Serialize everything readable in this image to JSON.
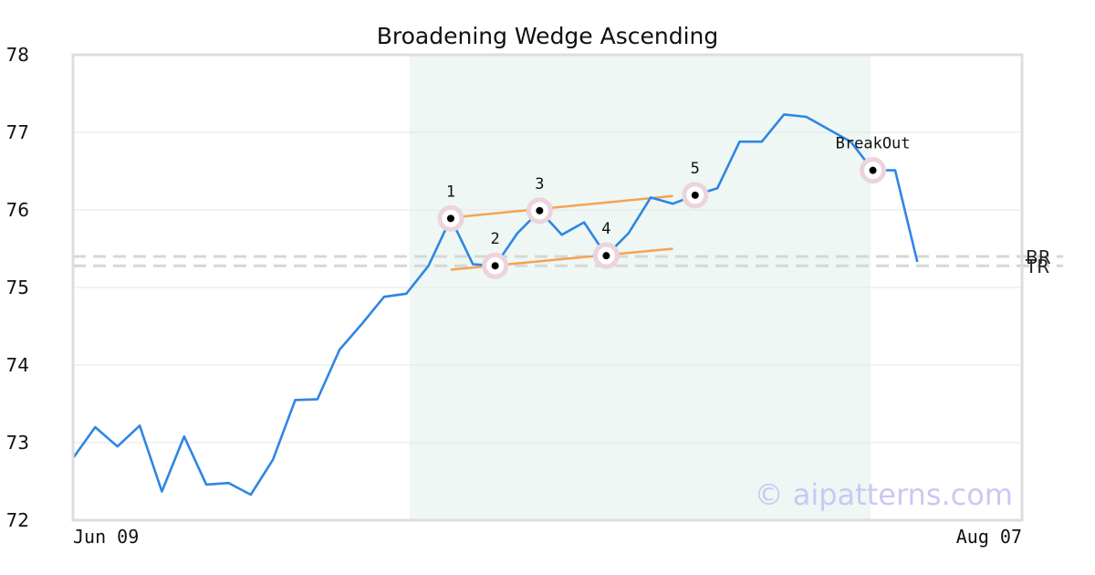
{
  "chart_data": {
    "type": "line",
    "title": "Broadening Wedge Ascending",
    "xlabel": "",
    "ylabel": "",
    "ylim": [
      72,
      78
    ],
    "y_ticks": [
      "72",
      "73",
      "74",
      "75",
      "76",
      "77",
      "78"
    ],
    "x_tick_labels": [
      "Jun 09",
      "Aug 07"
    ],
    "grid": "horizontal",
    "series": [
      {
        "color": "#2e86e4",
        "values": [
          72.8,
          73.2,
          72.95,
          73.22,
          72.37,
          73.08,
          72.46,
          72.48,
          72.33,
          72.78,
          73.55,
          73.56,
          74.2,
          74.53,
          74.88,
          74.92,
          75.28,
          75.89,
          75.3,
          75.28,
          75.7,
          75.99,
          75.68,
          75.84,
          75.41,
          75.7,
          76.16,
          76.08,
          76.19,
          76.28,
          76.88,
          76.88,
          77.23,
          77.2,
          77.04,
          76.88,
          76.51,
          76.51,
          75.33
        ]
      }
    ],
    "highlight_region": {
      "start_index": 15,
      "end_index": 36,
      "color": "#eef7f3"
    },
    "trendlines": [
      {
        "color": "#f4a352",
        "start": [
          17,
          75.9
        ],
        "end": [
          27,
          76.18
        ]
      },
      {
        "color": "#f4a352",
        "start": [
          17,
          75.23
        ],
        "end": [
          27,
          75.5
        ]
      }
    ],
    "markers": [
      {
        "label": "1",
        "index": 17,
        "value": 75.89,
        "position": "above"
      },
      {
        "label": "2",
        "index": 19,
        "value": 75.28,
        "position": "above"
      },
      {
        "label": "3",
        "index": 21,
        "value": 75.99,
        "position": "above"
      },
      {
        "label": "4",
        "index": 24,
        "value": 75.41,
        "position": "above"
      },
      {
        "label": "5",
        "index": 28,
        "value": 76.19,
        "position": "above"
      },
      {
        "label": "BreakOut",
        "index": 36,
        "value": 76.51,
        "position": "above"
      }
    ],
    "levels": [
      {
        "label": "BR",
        "value": 75.4
      },
      {
        "label": "TR",
        "value": 75.28
      }
    ],
    "watermark": "© aipatterns.com"
  }
}
